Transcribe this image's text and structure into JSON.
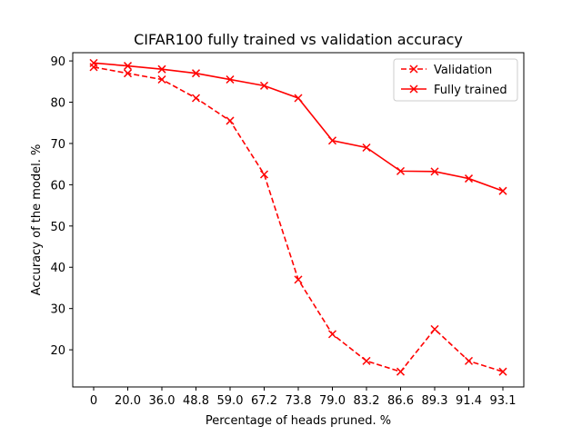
{
  "chart_data": {
    "type": "line",
    "title": "CIFAR100 fully trained vs validation accuracy",
    "xlabel": "Percentage of heads pruned. %",
    "ylabel": "Accuracy of the model. %",
    "categories": [
      "0",
      "20.0",
      "36.0",
      "48.8",
      "59.0",
      "67.2",
      "73.8",
      "79.0",
      "83.2",
      "86.6",
      "89.3",
      "91.4",
      "93.1"
    ],
    "ylim": [
      11,
      92
    ],
    "yticks": [
      "20",
      "30",
      "40",
      "50",
      "60",
      "70",
      "80",
      "90"
    ],
    "grid": false,
    "legend_position": "top-right",
    "series": [
      {
        "name": "Validation",
        "style": "dashed",
        "marker": "x",
        "color": "#ff0000",
        "values": [
          88.5,
          87.0,
          85.5,
          81.0,
          75.5,
          62.5,
          37.0,
          23.8,
          17.3,
          14.7,
          25.0,
          17.3,
          14.7
        ]
      },
      {
        "name": "Fully trained",
        "style": "solid",
        "marker": "x",
        "color": "#ff0000",
        "values": [
          89.5,
          88.8,
          88.0,
          87.0,
          85.5,
          84.0,
          81.0,
          70.7,
          69.0,
          63.3,
          63.2,
          61.5,
          58.5
        ]
      }
    ]
  }
}
